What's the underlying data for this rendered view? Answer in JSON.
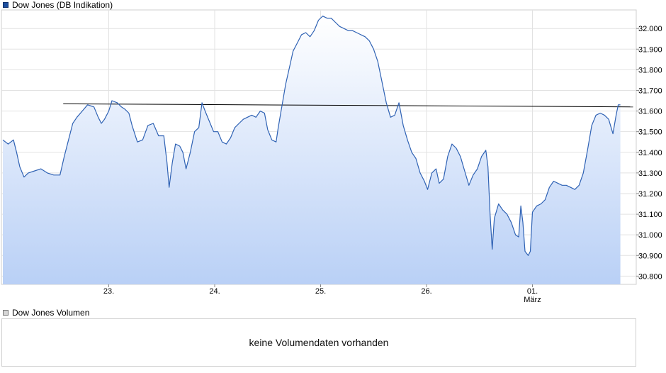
{
  "legend": {
    "price_label": "Dow Jones (DB Indikation)",
    "volume_label": "Dow Jones Volumen"
  },
  "volume_panel": {
    "message": "keine Volumendaten vorhanden"
  },
  "colors": {
    "line": "#2f62b4",
    "area_top": "#ffffff",
    "area_bottom": "#b9d0f6",
    "reference_line": "#000000",
    "grid": "#e2e2e2",
    "frame": "#cfcfcf"
  },
  "chart_data": {
    "type": "area",
    "title": "Dow Jones (DB Indikation)",
    "xlabel": "",
    "ylabel": "",
    "ylim": [
      30760,
      32090
    ],
    "xlim": [
      0,
      5.83
    ],
    "grid": true,
    "legend_position": "top-left",
    "y_ticks": [
      30800,
      30900,
      31000,
      31100,
      31200,
      31300,
      31400,
      31500,
      31600,
      31700,
      31800,
      31900,
      32000
    ],
    "y_tick_labels": [
      "30.800",
      "30.900",
      "31.000",
      "31.100",
      "31.200",
      "31.300",
      "31.400",
      "31.500",
      "31.600",
      "31.700",
      "31.800",
      "31.900",
      "32.000"
    ],
    "x_ticks": [
      {
        "x": 1,
        "label": "23."
      },
      {
        "x": 2,
        "label": "24."
      },
      {
        "x": 3,
        "label": "25."
      },
      {
        "x": 4,
        "label": "26."
      },
      {
        "x": 5,
        "label": "01.",
        "sublabel": "März"
      }
    ],
    "reference_line": {
      "x0": 0.57,
      "x1": 5.95,
      "y0": 31635,
      "y1": 31620
    },
    "series": [
      {
        "values": [
          [
            0.0,
            31460
          ],
          [
            0.05,
            31440
          ],
          [
            0.1,
            31460
          ],
          [
            0.13,
            31400
          ],
          [
            0.16,
            31330
          ],
          [
            0.2,
            31280
          ],
          [
            0.24,
            31300
          ],
          [
            0.3,
            31310
          ],
          [
            0.36,
            31320
          ],
          [
            0.42,
            31300
          ],
          [
            0.48,
            31290
          ],
          [
            0.54,
            31290
          ],
          [
            0.58,
            31380
          ],
          [
            0.62,
            31460
          ],
          [
            0.66,
            31540
          ],
          [
            0.7,
            31570
          ],
          [
            0.75,
            31600
          ],
          [
            0.8,
            31630
          ],
          [
            0.86,
            31620
          ],
          [
            0.9,
            31570
          ],
          [
            0.93,
            31540
          ],
          [
            0.96,
            31560
          ],
          [
            1.0,
            31600
          ],
          [
            1.03,
            31650
          ],
          [
            1.08,
            31640
          ],
          [
            1.12,
            31620
          ],
          [
            1.15,
            31610
          ],
          [
            1.19,
            31590
          ],
          [
            1.22,
            31530
          ],
          [
            1.27,
            31450
          ],
          [
            1.32,
            31460
          ],
          [
            1.37,
            31530
          ],
          [
            1.42,
            31540
          ],
          [
            1.47,
            31480
          ],
          [
            1.52,
            31480
          ],
          [
            1.55,
            31350
          ],
          [
            1.57,
            31230
          ],
          [
            1.6,
            31350
          ],
          [
            1.63,
            31440
          ],
          [
            1.67,
            31430
          ],
          [
            1.7,
            31400
          ],
          [
            1.73,
            31320
          ],
          [
            1.77,
            31400
          ],
          [
            1.81,
            31500
          ],
          [
            1.85,
            31520
          ],
          [
            1.88,
            31640
          ],
          [
            1.91,
            31600
          ],
          [
            1.95,
            31550
          ],
          [
            1.99,
            31500
          ],
          [
            2.03,
            31500
          ],
          [
            2.07,
            31450
          ],
          [
            2.11,
            31440
          ],
          [
            2.15,
            31470
          ],
          [
            2.19,
            31520
          ],
          [
            2.23,
            31540
          ],
          [
            2.27,
            31560
          ],
          [
            2.31,
            31570
          ],
          [
            2.35,
            31580
          ],
          [
            2.39,
            31570
          ],
          [
            2.43,
            31600
          ],
          [
            2.47,
            31590
          ],
          [
            2.5,
            31510
          ],
          [
            2.54,
            31460
          ],
          [
            2.58,
            31450
          ],
          [
            2.6,
            31520
          ],
          [
            2.63,
            31610
          ],
          [
            2.67,
            31730
          ],
          [
            2.71,
            31820
          ],
          [
            2.74,
            31890
          ],
          [
            2.78,
            31930
          ],
          [
            2.82,
            31970
          ],
          [
            2.86,
            31980
          ],
          [
            2.9,
            31960
          ],
          [
            2.94,
            31990
          ],
          [
            2.98,
            32040
          ],
          [
            3.02,
            32060
          ],
          [
            3.06,
            32050
          ],
          [
            3.1,
            32050
          ],
          [
            3.14,
            32030
          ],
          [
            3.18,
            32010
          ],
          [
            3.22,
            32000
          ],
          [
            3.26,
            31990
          ],
          [
            3.3,
            31990
          ],
          [
            3.34,
            31980
          ],
          [
            3.38,
            31970
          ],
          [
            3.42,
            31960
          ],
          [
            3.46,
            31940
          ],
          [
            3.5,
            31900
          ],
          [
            3.54,
            31840
          ],
          [
            3.58,
            31740
          ],
          [
            3.62,
            31640
          ],
          [
            3.66,
            31570
          ],
          [
            3.7,
            31580
          ],
          [
            3.74,
            31640
          ],
          [
            3.78,
            31530
          ],
          [
            3.82,
            31460
          ],
          [
            3.86,
            31400
          ],
          [
            3.9,
            31370
          ],
          [
            3.94,
            31300
          ],
          [
            3.98,
            31260
          ],
          [
            4.01,
            31220
          ],
          [
            4.05,
            31300
          ],
          [
            4.09,
            31320
          ],
          [
            4.12,
            31250
          ],
          [
            4.16,
            31270
          ],
          [
            4.2,
            31380
          ],
          [
            4.24,
            31440
          ],
          [
            4.28,
            31420
          ],
          [
            4.32,
            31380
          ],
          [
            4.36,
            31310
          ],
          [
            4.4,
            31240
          ],
          [
            4.44,
            31290
          ],
          [
            4.48,
            31320
          ],
          [
            4.52,
            31380
          ],
          [
            4.56,
            31410
          ],
          [
            4.58,
            31330
          ],
          [
            4.6,
            31100
          ],
          [
            4.62,
            30930
          ],
          [
            4.64,
            31080
          ],
          [
            4.68,
            31150
          ],
          [
            4.72,
            31120
          ],
          [
            4.76,
            31100
          ],
          [
            4.8,
            31060
          ],
          [
            4.84,
            31000
          ],
          [
            4.87,
            30990
          ],
          [
            4.89,
            31140
          ],
          [
            4.91,
            31060
          ],
          [
            4.93,
            30920
          ],
          [
            4.96,
            30900
          ],
          [
            4.98,
            30920
          ],
          [
            5.0,
            31110
          ],
          [
            5.04,
            31140
          ],
          [
            5.08,
            31150
          ],
          [
            5.12,
            31170
          ],
          [
            5.16,
            31230
          ],
          [
            5.2,
            31260
          ],
          [
            5.24,
            31250
          ],
          [
            5.28,
            31240
          ],
          [
            5.32,
            31240
          ],
          [
            5.36,
            31230
          ],
          [
            5.4,
            31220
          ],
          [
            5.44,
            31240
          ],
          [
            5.48,
            31300
          ],
          [
            5.52,
            31410
          ],
          [
            5.56,
            31530
          ],
          [
            5.6,
            31580
          ],
          [
            5.64,
            31590
          ],
          [
            5.68,
            31580
          ],
          [
            5.72,
            31560
          ],
          [
            5.76,
            31490
          ],
          [
            5.79,
            31580
          ],
          [
            5.81,
            31630
          ],
          [
            5.83,
            31630
          ]
        ]
      }
    ]
  }
}
